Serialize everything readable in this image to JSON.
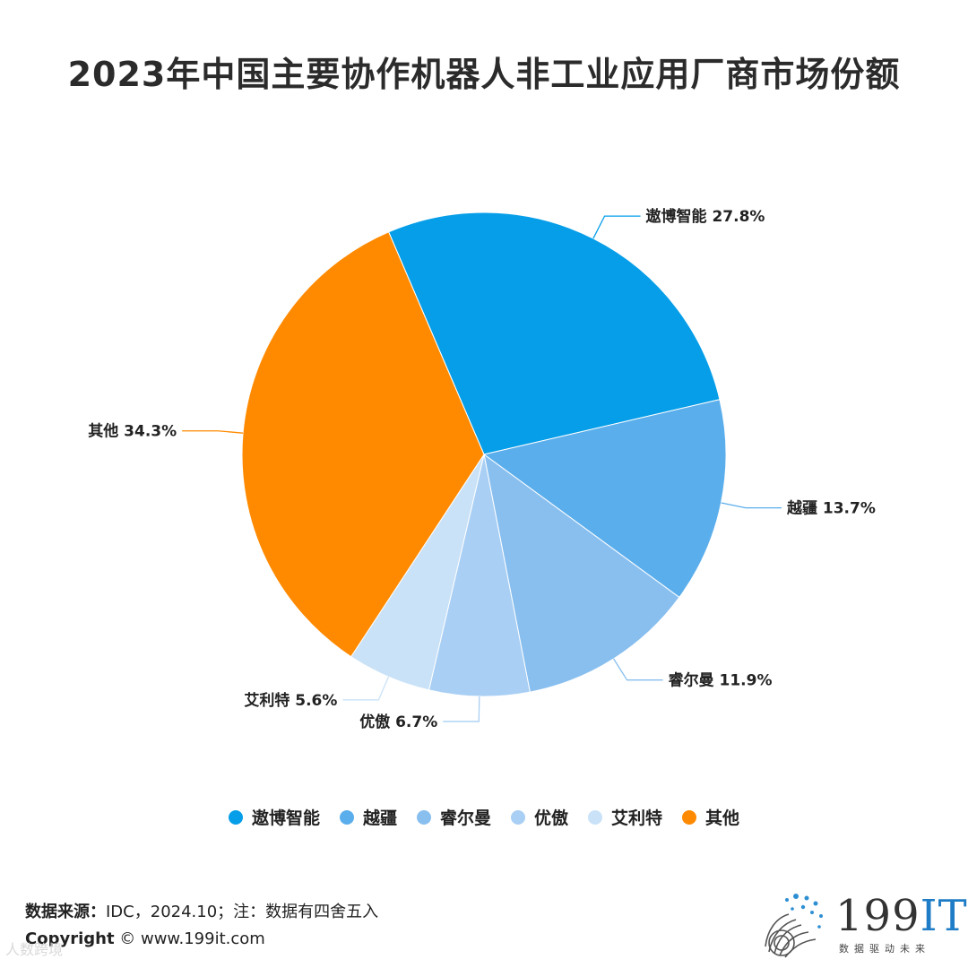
{
  "title": "2023年中国主要协作机器人非工业应用厂商市场份额",
  "chart_data": {
    "type": "pie",
    "title": "2023年中国主要协作机器人非工业应用厂商市场份额",
    "slices": [
      {
        "name": "遨博智能",
        "value": 27.8,
        "label": "遨博智能 27.8%",
        "color": "#069EE8"
      },
      {
        "name": "越疆",
        "value": 13.7,
        "label": "越疆 13.7%",
        "color": "#5BAEEC"
      },
      {
        "name": "睿尔曼",
        "value": 11.9,
        "label": "睿尔曼 11.9%",
        "color": "#88BFEF"
      },
      {
        "name": "优傲",
        "value": 6.7,
        "label": "优傲 6.7%",
        "color": "#A9CFF4"
      },
      {
        "name": "艾利特",
        "value": 5.6,
        "label": "艾利特 5.6%",
        "color": "#C9E2F8"
      },
      {
        "name": "其他",
        "value": 34.3,
        "label": "其他 34.3%",
        "color": "#FF8A00"
      }
    ],
    "legend_position": "bottom",
    "start_angle_deg": -23.2
  },
  "footer": {
    "source_label": "数据来源：",
    "source_text": "IDC，2024.10；注：数据有四舍五入",
    "copyright_label": "Copyright",
    "copyright_text": " © www.199it.com"
  },
  "brand": {
    "name_num": "199",
    "name_it": "IT",
    "tagline": "数据驱动未来"
  },
  "watermark": "人数跨境"
}
